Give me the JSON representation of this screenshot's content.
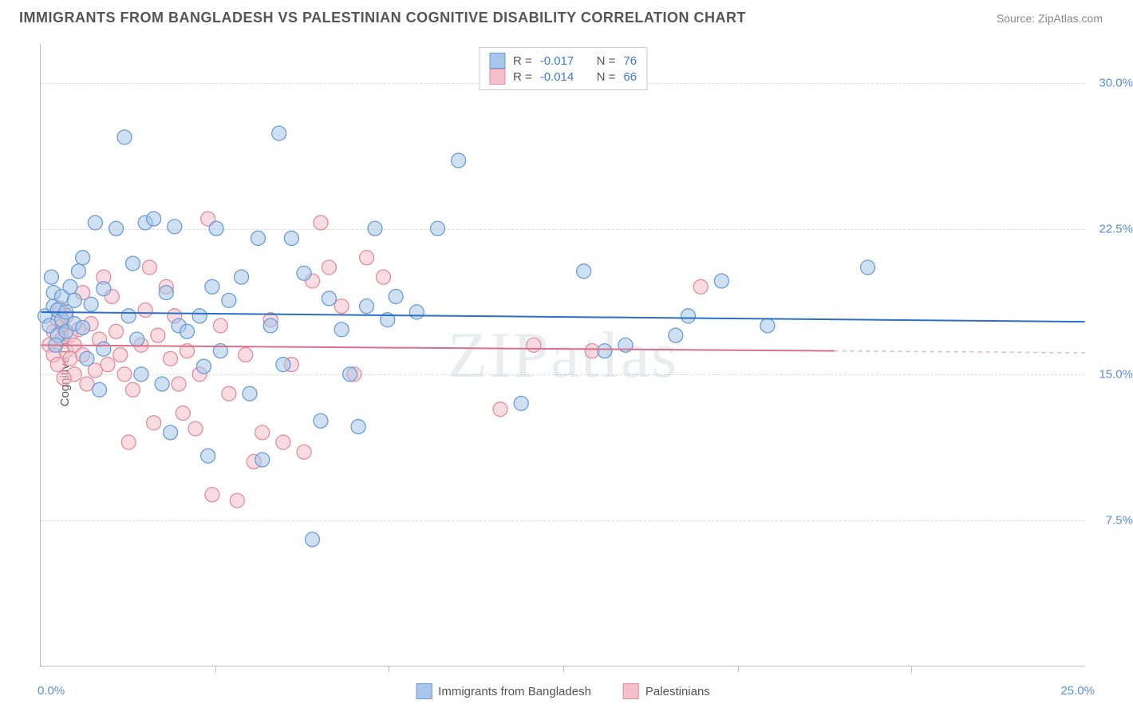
{
  "title": "IMMIGRANTS FROM BANGLADESH VS PALESTINIAN COGNITIVE DISABILITY CORRELATION CHART",
  "source": "Source: ZipAtlas.com",
  "watermark": "ZIPatlas",
  "y_title": "Cognitive Disability",
  "chart": {
    "type": "scatter",
    "xlim": [
      0,
      25
    ],
    "ylim": [
      0,
      32
    ],
    "x_tick_labels": [
      "0.0%",
      "25.0%"
    ],
    "x_tick_positions": [
      0,
      25
    ],
    "x_minor_ticks": [
      4.17,
      8.33,
      12.5,
      16.67,
      20.83
    ],
    "y_tick_labels": [
      "7.5%",
      "15.0%",
      "22.5%",
      "30.0%"
    ],
    "y_tick_positions": [
      7.5,
      15,
      22.5,
      30
    ],
    "background_color": "#ffffff",
    "grid_color": "#dddddd",
    "marker_radius": 9,
    "marker_opacity": 0.55,
    "line_width": 2,
    "series": [
      {
        "name": "Immigrants from Bangladesh",
        "color_fill": "#a8c6ea",
        "color_stroke": "#6a9cd6",
        "line_color": "#2a6fc9",
        "R": "-0.017",
        "N": "76",
        "trend": {
          "y_start": 18.2,
          "y_end": 17.7,
          "x_start": 0,
          "x_end": 25
        },
        "points": [
          [
            0.1,
            18.0
          ],
          [
            0.2,
            17.5
          ],
          [
            0.3,
            18.5
          ],
          [
            0.3,
            19.2
          ],
          [
            0.4,
            17.0
          ],
          [
            0.4,
            18.3
          ],
          [
            0.5,
            17.8
          ],
          [
            0.5,
            19.0
          ],
          [
            0.6,
            18.2
          ],
          [
            0.6,
            17.2
          ],
          [
            0.7,
            19.5
          ],
          [
            0.8,
            17.6
          ],
          [
            0.8,
            18.8
          ],
          [
            0.9,
            20.3
          ],
          [
            1.0,
            17.4
          ],
          [
            1.0,
            21.0
          ],
          [
            1.2,
            18.6
          ],
          [
            1.3,
            22.8
          ],
          [
            1.4,
            14.2
          ],
          [
            1.5,
            19.4
          ],
          [
            1.5,
            16.3
          ],
          [
            1.8,
            22.5
          ],
          [
            2.0,
            27.2
          ],
          [
            2.1,
            18.0
          ],
          [
            2.2,
            20.7
          ],
          [
            2.3,
            16.8
          ],
          [
            2.5,
            22.8
          ],
          [
            2.7,
            23.0
          ],
          [
            2.9,
            14.5
          ],
          [
            3.0,
            19.2
          ],
          [
            3.2,
            22.6
          ],
          [
            3.3,
            17.5
          ],
          [
            3.5,
            17.2
          ],
          [
            3.8,
            18.0
          ],
          [
            3.9,
            15.4
          ],
          [
            4.0,
            10.8
          ],
          [
            4.2,
            22.5
          ],
          [
            4.3,
            16.2
          ],
          [
            4.5,
            18.8
          ],
          [
            4.8,
            20.0
          ],
          [
            5.0,
            14.0
          ],
          [
            5.3,
            10.6
          ],
          [
            5.5,
            17.5
          ],
          [
            5.7,
            27.4
          ],
          [
            5.8,
            15.5
          ],
          [
            6.0,
            22.0
          ],
          [
            6.3,
            20.2
          ],
          [
            6.5,
            6.5
          ],
          [
            6.7,
            12.6
          ],
          [
            6.9,
            18.9
          ],
          [
            7.2,
            17.3
          ],
          [
            7.4,
            15.0
          ],
          [
            7.6,
            12.3
          ],
          [
            7.8,
            18.5
          ],
          [
            8.0,
            22.5
          ],
          [
            8.3,
            17.8
          ],
          [
            8.5,
            19.0
          ],
          [
            9.0,
            18.2
          ],
          [
            9.5,
            22.5
          ],
          [
            10.0,
            26.0
          ],
          [
            11.5,
            13.5
          ],
          [
            13.5,
            16.2
          ],
          [
            14.0,
            16.5
          ],
          [
            15.2,
            17.0
          ],
          [
            15.5,
            18.0
          ],
          [
            16.3,
            19.8
          ],
          [
            17.4,
            17.5
          ],
          [
            19.8,
            20.5
          ],
          [
            13.0,
            20.3
          ],
          [
            5.2,
            22.0
          ],
          [
            1.1,
            15.8
          ],
          [
            2.4,
            15.0
          ],
          [
            3.1,
            12.0
          ],
          [
            4.1,
            19.5
          ],
          [
            0.35,
            16.5
          ],
          [
            0.25,
            20.0
          ]
        ]
      },
      {
        "name": "Palestinians",
        "color_fill": "#f3c0cb",
        "color_stroke": "#e28ca0",
        "line_color": "#d9708a",
        "R": "-0.014",
        "N": "66",
        "trend": {
          "y_start": 16.5,
          "y_end": 16.2,
          "x_start": 0,
          "x_end": 19,
          "dash_to": 25
        },
        "points": [
          [
            0.2,
            16.5
          ],
          [
            0.3,
            17.2
          ],
          [
            0.3,
            16.0
          ],
          [
            0.4,
            17.8
          ],
          [
            0.4,
            15.5
          ],
          [
            0.5,
            16.8
          ],
          [
            0.5,
            17.5
          ],
          [
            0.6,
            16.2
          ],
          [
            0.6,
            18.0
          ],
          [
            0.7,
            15.8
          ],
          [
            0.7,
            17.0
          ],
          [
            0.8,
            16.5
          ],
          [
            0.8,
            15.0
          ],
          [
            0.9,
            17.3
          ],
          [
            1.0,
            19.2
          ],
          [
            1.0,
            16.0
          ],
          [
            1.1,
            14.5
          ],
          [
            1.2,
            17.6
          ],
          [
            1.3,
            15.2
          ],
          [
            1.4,
            16.8
          ],
          [
            1.5,
            20.0
          ],
          [
            1.6,
            15.5
          ],
          [
            1.8,
            17.2
          ],
          [
            1.9,
            16.0
          ],
          [
            2.0,
            15.0
          ],
          [
            2.2,
            14.2
          ],
          [
            2.4,
            16.5
          ],
          [
            2.5,
            18.3
          ],
          [
            2.7,
            12.5
          ],
          [
            2.8,
            17.0
          ],
          [
            3.0,
            19.5
          ],
          [
            3.1,
            15.8
          ],
          [
            3.3,
            14.5
          ],
          [
            3.4,
            13.0
          ],
          [
            3.5,
            16.2
          ],
          [
            3.7,
            12.2
          ],
          [
            3.8,
            15.0
          ],
          [
            4.0,
            23.0
          ],
          [
            4.1,
            8.8
          ],
          [
            4.3,
            17.5
          ],
          [
            4.5,
            14.0
          ],
          [
            4.7,
            8.5
          ],
          [
            4.9,
            16.0
          ],
          [
            5.1,
            10.5
          ],
          [
            5.3,
            12.0
          ],
          [
            5.5,
            17.8
          ],
          [
            5.8,
            11.5
          ],
          [
            6.0,
            15.5
          ],
          [
            6.3,
            11.0
          ],
          [
            6.5,
            19.8
          ],
          [
            6.7,
            22.8
          ],
          [
            6.9,
            20.5
          ],
          [
            7.2,
            18.5
          ],
          [
            7.5,
            15.0
          ],
          [
            7.8,
            21.0
          ],
          [
            8.2,
            20.0
          ],
          [
            11.0,
            13.2
          ],
          [
            11.8,
            16.5
          ],
          [
            13.2,
            16.2
          ],
          [
            15.8,
            19.5
          ],
          [
            1.7,
            19.0
          ],
          [
            2.1,
            11.5
          ],
          [
            2.6,
            20.5
          ],
          [
            3.2,
            18.0
          ],
          [
            0.45,
            18.4
          ],
          [
            0.55,
            14.8
          ]
        ]
      }
    ]
  },
  "legend_top": {
    "r_label": "R =",
    "n_label": "N ="
  }
}
